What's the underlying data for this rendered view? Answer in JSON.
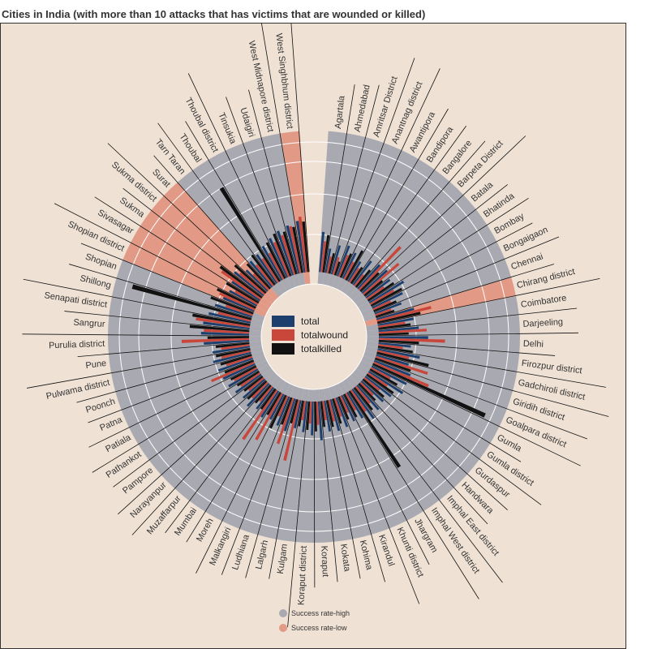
{
  "title": "Cities in India (with more than 10 attacks that has victims that are wounded or killed)",
  "colors": {
    "background": "#efe2d5",
    "success_high": "#a9a9b1",
    "success_low": "#e29a86",
    "total": "#1c3f6e",
    "totalwound": "#c9463a",
    "totalkilled": "#111111",
    "gridline": "#ffffff"
  },
  "chart_data": {
    "type": "radial-bar",
    "title": "Cities in India (with more than 10 attacks that has victims that are wounded or killed)",
    "series": [
      {
        "name": "total",
        "color": "#1c3f6e"
      },
      {
        "name": "totalwound",
        "color": "#c9463a"
      },
      {
        "name": "totalkilled",
        "color": "#111111"
      }
    ],
    "success_legend": [
      {
        "label": "Success rate-high",
        "color": "#a9a9b1"
      },
      {
        "label": "Success rate-low",
        "color": "#e29a86"
      }
    ],
    "cities": [
      {
        "name": "Agartala",
        "success": "high",
        "total": 62,
        "totalwound": 48,
        "totalkilled": 58
      },
      {
        "name": "Ahmedabad",
        "success": "high",
        "total": 38,
        "totalwound": 26,
        "totalkilled": 32
      },
      {
        "name": "Amritsar District",
        "success": "high",
        "total": 46,
        "totalwound": 28,
        "totalkilled": 22
      },
      {
        "name": "Anantnag district",
        "success": "high",
        "total": 50,
        "totalwound": 36,
        "totalkilled": 40
      },
      {
        "name": "Awantipora",
        "success": "high",
        "total": 44,
        "totalwound": 30,
        "totalkilled": 52
      },
      {
        "name": "Bandipora",
        "success": "high",
        "total": 36,
        "totalwound": 26,
        "totalkilled": 30
      },
      {
        "name": "Bangalore",
        "success": "high",
        "total": 46,
        "totalwound": 22,
        "totalkilled": 34
      },
      {
        "name": "Barpeta District",
        "success": "high",
        "total": 50,
        "totalwound": 92,
        "totalkilled": 40
      },
      {
        "name": "Batala",
        "success": "high",
        "total": 52,
        "totalwound": 72,
        "totalkilled": 36
      },
      {
        "name": "Bhatinda",
        "success": "high",
        "total": 46,
        "totalwound": 32,
        "totalkilled": 48
      },
      {
        "name": "Bombay",
        "success": "high",
        "total": 62,
        "totalwound": 42,
        "totalkilled": 54
      },
      {
        "name": "Bongaigaon",
        "success": "high",
        "total": 52,
        "totalwound": 30,
        "totalkilled": 38
      },
      {
        "name": "Chennai",
        "success": "high",
        "total": 44,
        "totalwound": 26,
        "totalkilled": 30
      },
      {
        "name": "Chirang district",
        "success": "low",
        "total": 60,
        "totalwound": 86,
        "totalkilled": 68
      },
      {
        "name": "Coimbatore",
        "success": "high",
        "total": 56,
        "totalwound": 42,
        "totalkilled": 50
      },
      {
        "name": "Darjeeling",
        "success": "high",
        "total": 62,
        "totalwound": 74,
        "totalkilled": 46
      },
      {
        "name": "Delhi",
        "success": "high",
        "total": 76,
        "totalwound": 102,
        "totalkilled": 62
      },
      {
        "name": "Firozpur district",
        "success": "high",
        "total": 50,
        "totalwound": 38,
        "totalkilled": 54
      },
      {
        "name": "Gadchiroli district",
        "success": "high",
        "total": 66,
        "totalwound": 50,
        "totalkilled": 82
      },
      {
        "name": "Giridih district",
        "success": "high",
        "total": 52,
        "totalwound": 84,
        "totalkilled": 58
      },
      {
        "name": "Goalpara district",
        "success": "high",
        "total": 60,
        "totalwound": 92,
        "totalkilled": 190
      },
      {
        "name": "Gumla",
        "success": "high",
        "total": 60,
        "totalwound": 34,
        "totalkilled": 48
      },
      {
        "name": "Gumla district",
        "success": "high",
        "total": 62,
        "totalwound": 36,
        "totalkilled": 50
      },
      {
        "name": "Gurdaspur",
        "success": "high",
        "total": 50,
        "totalwound": 30,
        "totalkilled": 42
      },
      {
        "name": "Handwara",
        "success": "high",
        "total": 46,
        "totalwound": 28,
        "totalkilled": 36
      },
      {
        "name": "Imphal East district",
        "success": "high",
        "total": 50,
        "totalwound": 34,
        "totalkilled": 44
      },
      {
        "name": "Imphal West district",
        "success": "high",
        "total": 56,
        "totalwound": 40,
        "totalkilled": 140
      },
      {
        "name": "Jhargram",
        "success": "high",
        "total": 46,
        "totalwound": 30,
        "totalkilled": 40
      },
      {
        "name": "Khunti district",
        "success": "high",
        "total": 44,
        "totalwound": 28,
        "totalkilled": 38
      },
      {
        "name": "Kirandul",
        "success": "high",
        "total": 48,
        "totalwound": 30,
        "totalkilled": 40
      },
      {
        "name": "Kohima",
        "success": "high",
        "total": 50,
        "totalwound": 34,
        "totalkilled": 42
      },
      {
        "name": "Kokata",
        "success": "high",
        "total": 48,
        "totalwound": 30,
        "totalkilled": 40
      },
      {
        "name": "Koraput",
        "success": "high",
        "total": 60,
        "totalwound": 36,
        "totalkilled": 46
      },
      {
        "name": "Koraput district",
        "success": "high",
        "total": 52,
        "totalwound": 34,
        "totalkilled": 44
      },
      {
        "name": "Kulgam",
        "success": "high",
        "total": 48,
        "totalwound": 30,
        "totalkilled": 40
      },
      {
        "name": "Lalgarh",
        "success": "high",
        "total": 44,
        "totalwound": 96,
        "totalkilled": 38
      },
      {
        "name": "Ludhiana",
        "success": "high",
        "total": 52,
        "totalwound": 74,
        "totalkilled": 44
      },
      {
        "name": "Malkangiri",
        "success": "high",
        "total": 48,
        "totalwound": 34,
        "totalkilled": 56
      },
      {
        "name": "Moreh",
        "success": "high",
        "total": 44,
        "totalwound": 82,
        "totalkilled": 40
      },
      {
        "name": "Mumbai",
        "success": "high",
        "total": 48,
        "totalwound": 92,
        "totalkilled": 38
      },
      {
        "name": "Muzaffarpur",
        "success": "high",
        "total": 42,
        "totalwound": 30,
        "totalkilled": 36
      },
      {
        "name": "Narayanpur",
        "success": "high",
        "total": 48,
        "totalwound": 34,
        "totalkilled": 40
      },
      {
        "name": "Pampore",
        "success": "high",
        "total": 44,
        "totalwound": 30,
        "totalkilled": 36
      },
      {
        "name": "Pathankot",
        "success": "high",
        "total": 48,
        "totalwound": 36,
        "totalkilled": 40
      },
      {
        "name": "Patiala",
        "success": "high",
        "total": 52,
        "totalwound": 40,
        "totalkilled": 44
      },
      {
        "name": "Patna",
        "success": "high",
        "total": 54,
        "totalwound": 72,
        "totalkilled": 48
      },
      {
        "name": "Poonch",
        "success": "high",
        "total": 56,
        "totalwound": 42,
        "totalkilled": 50
      },
      {
        "name": "Pulwama district",
        "success": "high",
        "total": 60,
        "totalwound": 46,
        "totalkilled": 54
      },
      {
        "name": "Pune",
        "success": "high",
        "total": 58,
        "totalwound": 44,
        "totalkilled": 52
      },
      {
        "name": "Purulia district",
        "success": "high",
        "total": 70,
        "totalwound": 104,
        "totalkilled": 64
      },
      {
        "name": "Sangrur",
        "success": "high",
        "total": 74,
        "totalwound": 70,
        "totalkilled": 92
      },
      {
        "name": "Senapati district",
        "success": "high",
        "total": 72,
        "totalwound": 84,
        "totalkilled": 90
      },
      {
        "name": "Shillong",
        "success": "high",
        "total": 66,
        "totalwound": 52,
        "totalkilled": 190
      },
      {
        "name": "Shopian",
        "success": "high",
        "total": 60,
        "totalwound": 44,
        "totalkilled": 70
      },
      {
        "name": "Shopian district",
        "success": "low",
        "total": 52,
        "totalwound": 60,
        "totalkilled": 66
      },
      {
        "name": "Sivasagar",
        "success": "low",
        "total": 48,
        "totalwound": 40,
        "totalkilled": 58
      },
      {
        "name": "Sukma",
        "success": "low",
        "total": 52,
        "totalwound": 74,
        "totalkilled": 80
      },
      {
        "name": "Sukma district",
        "success": "low",
        "total": 58,
        "totalwound": 50,
        "totalkilled": 64
      },
      {
        "name": "Surat",
        "success": "low",
        "total": 46,
        "totalwound": 34,
        "totalkilled": 52
      },
      {
        "name": "Tarn Taran",
        "success": "high",
        "total": 52,
        "totalwound": 42,
        "totalkilled": 58
      },
      {
        "name": "Thoubal",
        "success": "high",
        "total": 54,
        "totalwound": 44,
        "totalkilled": 170
      },
      {
        "name": "Thoubal district",
        "success": "high",
        "total": 60,
        "totalwound": 46,
        "totalkilled": 62
      },
      {
        "name": "Tinsukia",
        "success": "high",
        "total": 66,
        "totalwound": 58,
        "totalkilled": 70
      },
      {
        "name": "Udaigiri",
        "success": "high",
        "total": 72,
        "totalwound": 64,
        "totalkilled": 68
      },
      {
        "name": "West Midnapore district",
        "success": "high",
        "total": 76,
        "totalwound": 74,
        "totalkilled": 72
      },
      {
        "name": "West Singhbhum district",
        "success": "low",
        "total": 80,
        "totalwound": 86,
        "totalkilled": 78
      }
    ]
  }
}
